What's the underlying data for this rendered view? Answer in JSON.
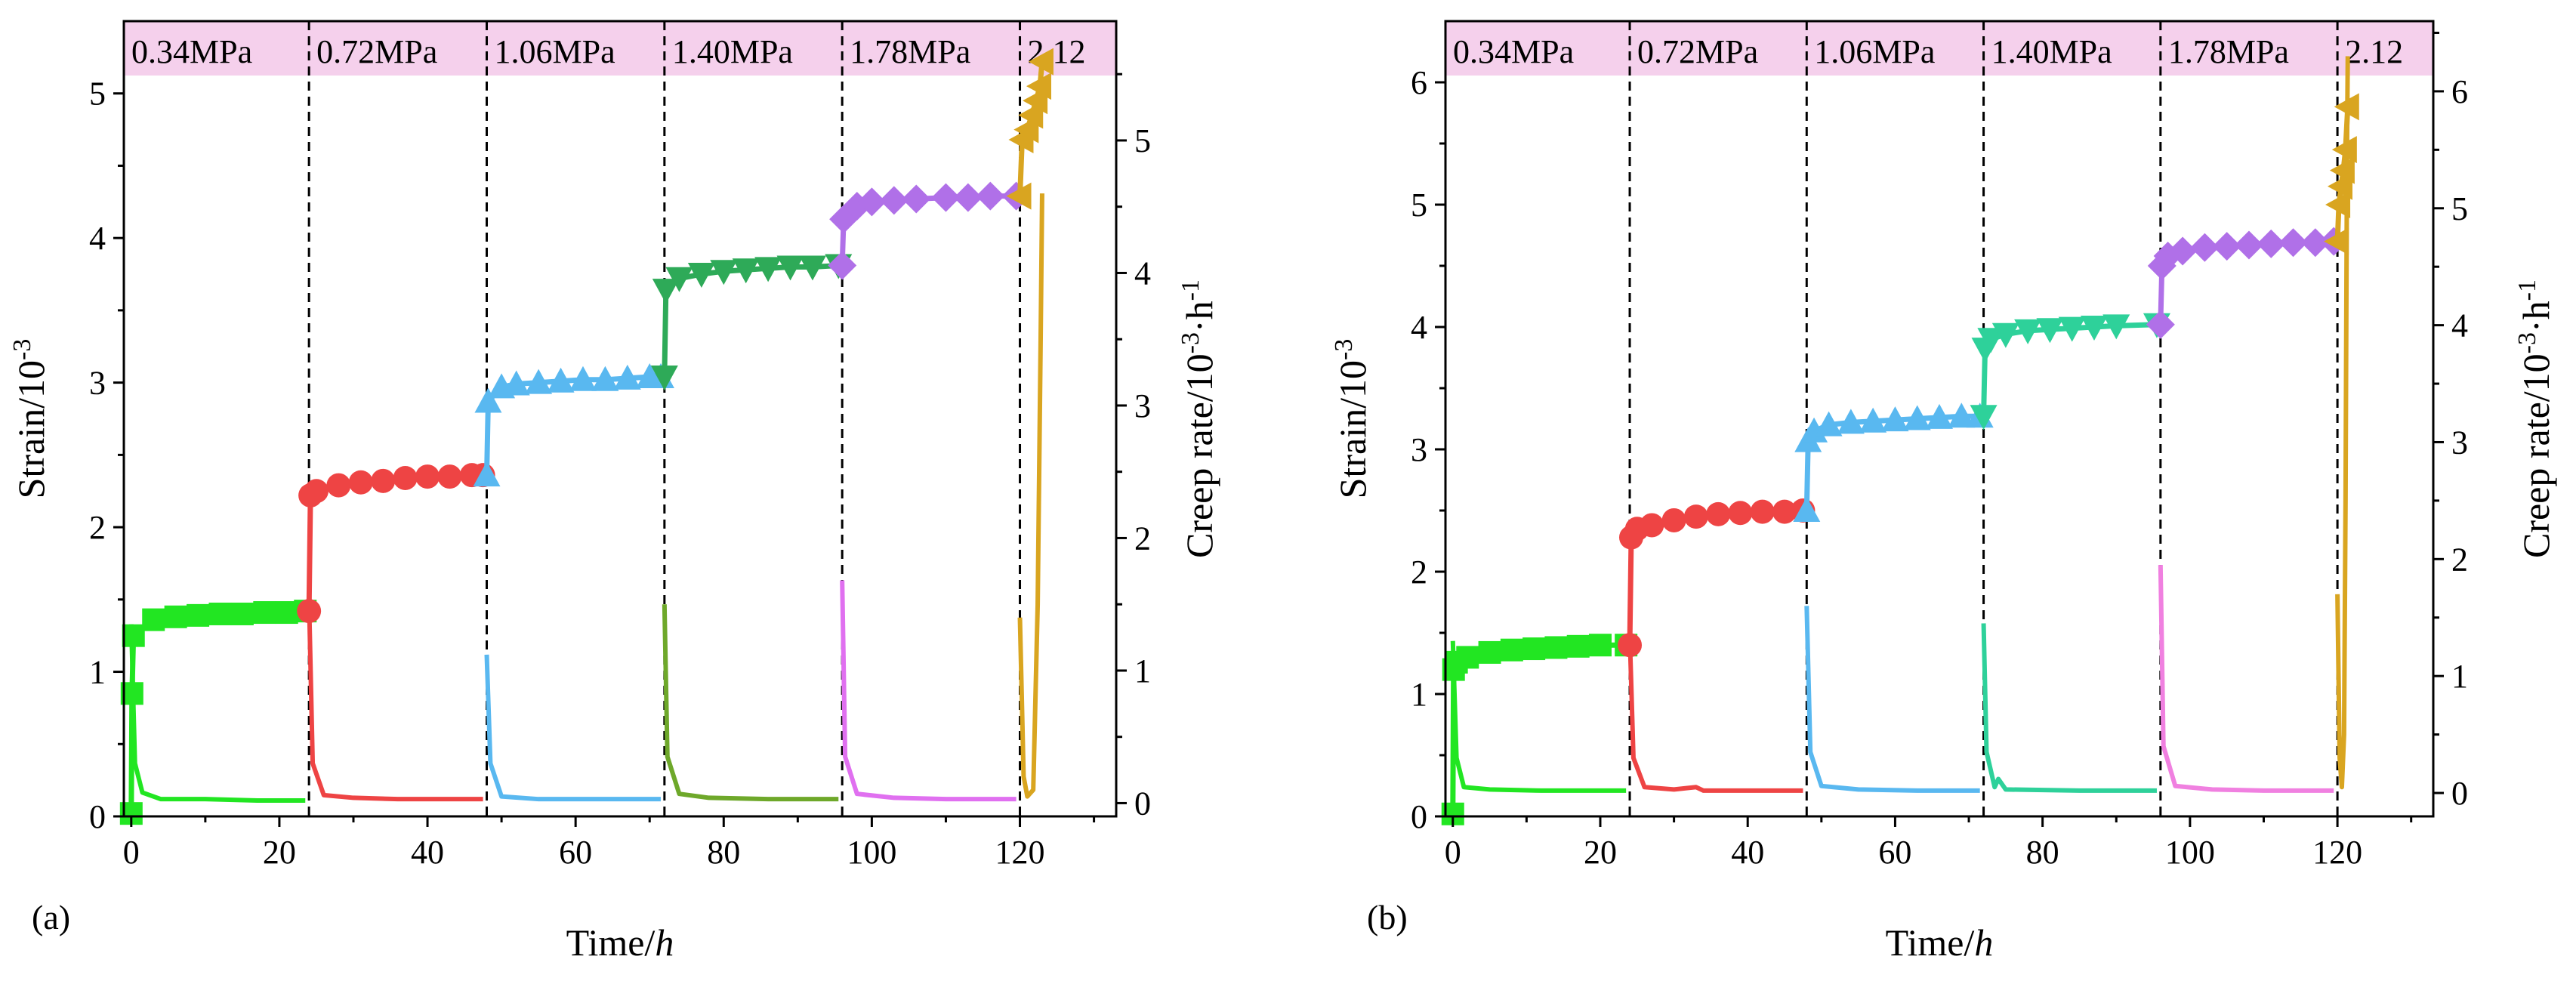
{
  "figure": {
    "panels": [
      "(a)",
      "(b)"
    ]
  },
  "chart_data": [
    {
      "type": "line",
      "panel_label": "(a)",
      "xlabel": "Time/h",
      "ylabel": "Strain/10^-3",
      "y2label": "Creep rate/10^-3·h^-1",
      "xlim": [
        -1,
        133
      ],
      "ylim": [
        0,
        5.5
      ],
      "y2lim": [
        -0.1,
        5.9
      ],
      "xticks": [
        0,
        20,
        40,
        60,
        80,
        100,
        120
      ],
      "yticks": [
        0,
        1,
        2,
        3,
        4,
        5
      ],
      "y2ticks": [
        0,
        1,
        2,
        3,
        4,
        5
      ],
      "stage_band_color": "#f5d0ec",
      "stage_labels": [
        "0.34MPa",
        "0.72MPa",
        "1.06MPa",
        "1.40MPa",
        "1.78MPa",
        "2.12"
      ],
      "stage_boundaries": [
        24,
        48,
        72,
        96,
        120
      ],
      "series": [
        {
          "marker": "square",
          "color": "#22e622",
          "strain": [
            [
              0,
              0.02
            ],
            [
              0.1,
              0.85
            ],
            [
              0.3,
              1.25
            ],
            [
              3,
              1.36
            ],
            [
              6,
              1.38
            ],
            [
              9,
              1.39
            ],
            [
              12,
              1.4
            ],
            [
              15,
              1.4
            ],
            [
              18,
              1.41
            ],
            [
              21,
              1.41
            ],
            [
              23.5,
              1.42
            ]
          ],
          "rate": [
            [
              0,
              1.35
            ],
            [
              0.5,
              0.3
            ],
            [
              1.5,
              0.08
            ],
            [
              4,
              0.03
            ],
            [
              10,
              0.03
            ],
            [
              17,
              0.02
            ],
            [
              23.5,
              0.02
            ]
          ]
        },
        {
          "marker": "circle",
          "color": "#ee4444",
          "strain": [
            [
              24,
              1.42
            ],
            [
              24.2,
              2.22
            ],
            [
              25,
              2.25
            ],
            [
              28,
              2.29
            ],
            [
              31,
              2.31
            ],
            [
              34,
              2.32
            ],
            [
              37,
              2.34
            ],
            [
              40,
              2.35
            ],
            [
              43,
              2.35
            ],
            [
              46,
              2.36
            ],
            [
              47.5,
              2.36
            ]
          ],
          "rate": [
            [
              24,
              1.55
            ],
            [
              24.5,
              0.3
            ],
            [
              26,
              0.06
            ],
            [
              30,
              0.04
            ],
            [
              36,
              0.03
            ],
            [
              42,
              0.03
            ],
            [
              47.5,
              0.03
            ]
          ]
        },
        {
          "marker": "triangle-up",
          "color": "#59b8f0",
          "strain": [
            [
              48,
              2.36
            ],
            [
              48.2,
              2.87
            ],
            [
              50,
              2.97
            ],
            [
              52,
              2.99
            ],
            [
              55,
              3.0
            ],
            [
              58,
              3.01
            ],
            [
              61,
              3.02
            ],
            [
              64,
              3.02
            ],
            [
              67,
              3.03
            ],
            [
              70,
              3.04
            ],
            [
              71.5,
              3.04
            ]
          ],
          "rate": [
            [
              48,
              1.12
            ],
            [
              48.5,
              0.3
            ],
            [
              50,
              0.05
            ],
            [
              55,
              0.03
            ],
            [
              62,
              0.03
            ],
            [
              71.5,
              0.03
            ]
          ]
        },
        {
          "marker": "triangle-down",
          "color": "#2eaa58",
          "strain": [
            [
              72,
              3.04
            ],
            [
              72.2,
              3.64
            ],
            [
              74,
              3.72
            ],
            [
              77,
              3.75
            ],
            [
              80,
              3.77
            ],
            [
              83,
              3.78
            ],
            [
              86,
              3.79
            ],
            [
              89,
              3.8
            ],
            [
              92,
              3.8
            ],
            [
              95.5,
              3.81
            ]
          ],
          "y2_note": "rate curve drawn in olive green",
          "rate": [
            [
              72,
              1.5
            ],
            [
              72.4,
              0.35
            ],
            [
              74,
              0.07
            ],
            [
              78,
              0.04
            ],
            [
              86,
              0.03
            ],
            [
              95.5,
              0.03
            ]
          ],
          "rate_color": "#6ea82a"
        },
        {
          "marker": "diamond",
          "color": "#b070e8",
          "strain": [
            [
              96,
              3.81
            ],
            [
              96.2,
              4.13
            ],
            [
              98,
              4.22
            ],
            [
              100,
              4.25
            ],
            [
              103,
              4.26
            ],
            [
              106,
              4.27
            ],
            [
              110,
              4.28
            ],
            [
              113,
              4.28
            ],
            [
              116,
              4.29
            ],
            [
              119.5,
              4.29
            ]
          ],
          "rate": [
            [
              96,
              1.68
            ],
            [
              96.4,
              0.35
            ],
            [
              98,
              0.07
            ],
            [
              103,
              0.04
            ],
            [
              110,
              0.03
            ],
            [
              119.5,
              0.03
            ]
          ],
          "rate_color": "#e070f0"
        },
        {
          "marker": "triangle-left",
          "color": "#d9a520",
          "strain": [
            [
              120,
              4.29
            ],
            [
              120.3,
              4.68
            ],
            [
              121,
              4.75
            ],
            [
              121.6,
              4.85
            ],
            [
              122.2,
              4.95
            ],
            [
              122.7,
              5.05
            ],
            [
              123,
              5.22
            ]
          ],
          "rate": [
            [
              120,
              1.4
            ],
            [
              120.5,
              0.2
            ],
            [
              121,
              0.05
            ],
            [
              121.8,
              0.1
            ],
            [
              122.4,
              1.5
            ],
            [
              122.8,
              3.5
            ],
            [
              123,
              4.6
            ]
          ]
        }
      ]
    },
    {
      "type": "line",
      "panel_label": "(b)",
      "xlabel": "Time/h",
      "ylabel": "Strain/10^-3",
      "y2label": "Creep rate/10^-3·h^-1",
      "xlim": [
        -1,
        133
      ],
      "ylim": [
        0,
        6.5
      ],
      "y2lim": [
        -0.2,
        6.6
      ],
      "xticks": [
        0,
        20,
        40,
        60,
        80,
        100,
        120
      ],
      "yticks": [
        0,
        1,
        2,
        3,
        4,
        5,
        6
      ],
      "y2ticks": [
        0,
        1,
        2,
        3,
        4,
        5,
        6
      ],
      "stage_band_color": "#f5d0ec",
      "stage_labels": [
        "0.34MPa",
        "0.72MPa",
        "1.06MPa",
        "1.40MPa",
        "1.78MPa",
        "2.12"
      ],
      "stage_boundaries": [
        24,
        48,
        72,
        96,
        120
      ],
      "series": [
        {
          "marker": "square",
          "color": "#22e622",
          "strain": [
            [
              0,
              0.02
            ],
            [
              0.1,
              1.2
            ],
            [
              0.5,
              1.26
            ],
            [
              2,
              1.3
            ],
            [
              5,
              1.34
            ],
            [
              8,
              1.36
            ],
            [
              11,
              1.37
            ],
            [
              14,
              1.38
            ],
            [
              17,
              1.39
            ],
            [
              20,
              1.4
            ],
            [
              23.5,
              1.4
            ]
          ],
          "rate": [
            [
              0,
              1.3
            ],
            [
              0.5,
              0.3
            ],
            [
              1.5,
              0.05
            ],
            [
              5,
              0.03
            ],
            [
              12,
              0.02
            ],
            [
              23.5,
              0.02
            ]
          ]
        },
        {
          "marker": "circle",
          "color": "#ee4444",
          "strain": [
            [
              24,
              1.4
            ],
            [
              24.2,
              2.28
            ],
            [
              25,
              2.35
            ],
            [
              27,
              2.38
            ],
            [
              30,
              2.42
            ],
            [
              33,
              2.45
            ],
            [
              36,
              2.47
            ],
            [
              39,
              2.48
            ],
            [
              42,
              2.49
            ],
            [
              45,
              2.49
            ],
            [
              47.5,
              2.5
            ]
          ],
          "rate": [
            [
              24,
              1.35
            ],
            [
              24.5,
              0.3
            ],
            [
              26,
              0.05
            ],
            [
              30,
              0.03
            ],
            [
              33,
              0.05
            ],
            [
              34,
              0.02
            ],
            [
              47.5,
              0.02
            ]
          ]
        },
        {
          "marker": "triangle-up",
          "color": "#59b8f0",
          "strain": [
            [
              48,
              2.5
            ],
            [
              48.2,
              3.07
            ],
            [
              49,
              3.15
            ],
            [
              51,
              3.2
            ],
            [
              54,
              3.22
            ],
            [
              57,
              3.23
            ],
            [
              60,
              3.24
            ],
            [
              63,
              3.25
            ],
            [
              66,
              3.26
            ],
            [
              69,
              3.27
            ],
            [
              71.5,
              3.27
            ]
          ],
          "rate": [
            [
              48,
              1.6
            ],
            [
              48.5,
              0.35
            ],
            [
              50,
              0.06
            ],
            [
              55,
              0.03
            ],
            [
              63,
              0.02
            ],
            [
              71.5,
              0.02
            ]
          ]
        },
        {
          "marker": "triangle-down",
          "color": "#2ed19a",
          "strain": [
            [
              72,
              3.27
            ],
            [
              72.2,
              3.82
            ],
            [
              73,
              3.9
            ],
            [
              75,
              3.94
            ],
            [
              78,
              3.97
            ],
            [
              81,
              3.98
            ],
            [
              84,
              3.99
            ],
            [
              87,
              4.0
            ],
            [
              90,
              4.01
            ],
            [
              95.5,
              4.02
            ]
          ],
          "rate": [
            [
              72,
              1.45
            ],
            [
              72.4,
              0.35
            ],
            [
              73.5,
              0.05
            ],
            [
              74,
              0.12
            ],
            [
              75,
              0.03
            ],
            [
              85,
              0.02
            ],
            [
              95.5,
              0.02
            ]
          ]
        },
        {
          "marker": "diamond",
          "color": "#b070e8",
          "strain": [
            [
              96,
              4.02
            ],
            [
              96.2,
              4.5
            ],
            [
              97,
              4.58
            ],
            [
              99,
              4.62
            ],
            [
              102,
              4.65
            ],
            [
              105,
              4.66
            ],
            [
              108,
              4.67
            ],
            [
              111,
              4.68
            ],
            [
              114,
              4.69
            ],
            [
              117,
              4.69
            ],
            [
              119.5,
              4.7
            ]
          ],
          "rate": [
            [
              96,
              1.95
            ],
            [
              96.4,
              0.4
            ],
            [
              98,
              0.06
            ],
            [
              103,
              0.03
            ],
            [
              110,
              0.02
            ],
            [
              119.5,
              0.02
            ]
          ],
          "rate_color": "#f080e0"
        },
        {
          "marker": "triangle-left",
          "color": "#d9a520",
          "strain": [
            [
              120,
              4.7
            ],
            [
              120.2,
              5.0
            ],
            [
              120.5,
              5.15
            ],
            [
              120.8,
              5.28
            ],
            [
              121.1,
              5.45
            ],
            [
              121.4,
              5.8
            ]
          ],
          "rate": [
            [
              120,
              1.7
            ],
            [
              120.3,
              0.3
            ],
            [
              120.6,
              0.05
            ],
            [
              120.9,
              0.5
            ],
            [
              121.1,
              2.5
            ],
            [
              121.3,
              5.5
            ],
            [
              121.4,
              6.3
            ]
          ]
        }
      ]
    }
  ]
}
